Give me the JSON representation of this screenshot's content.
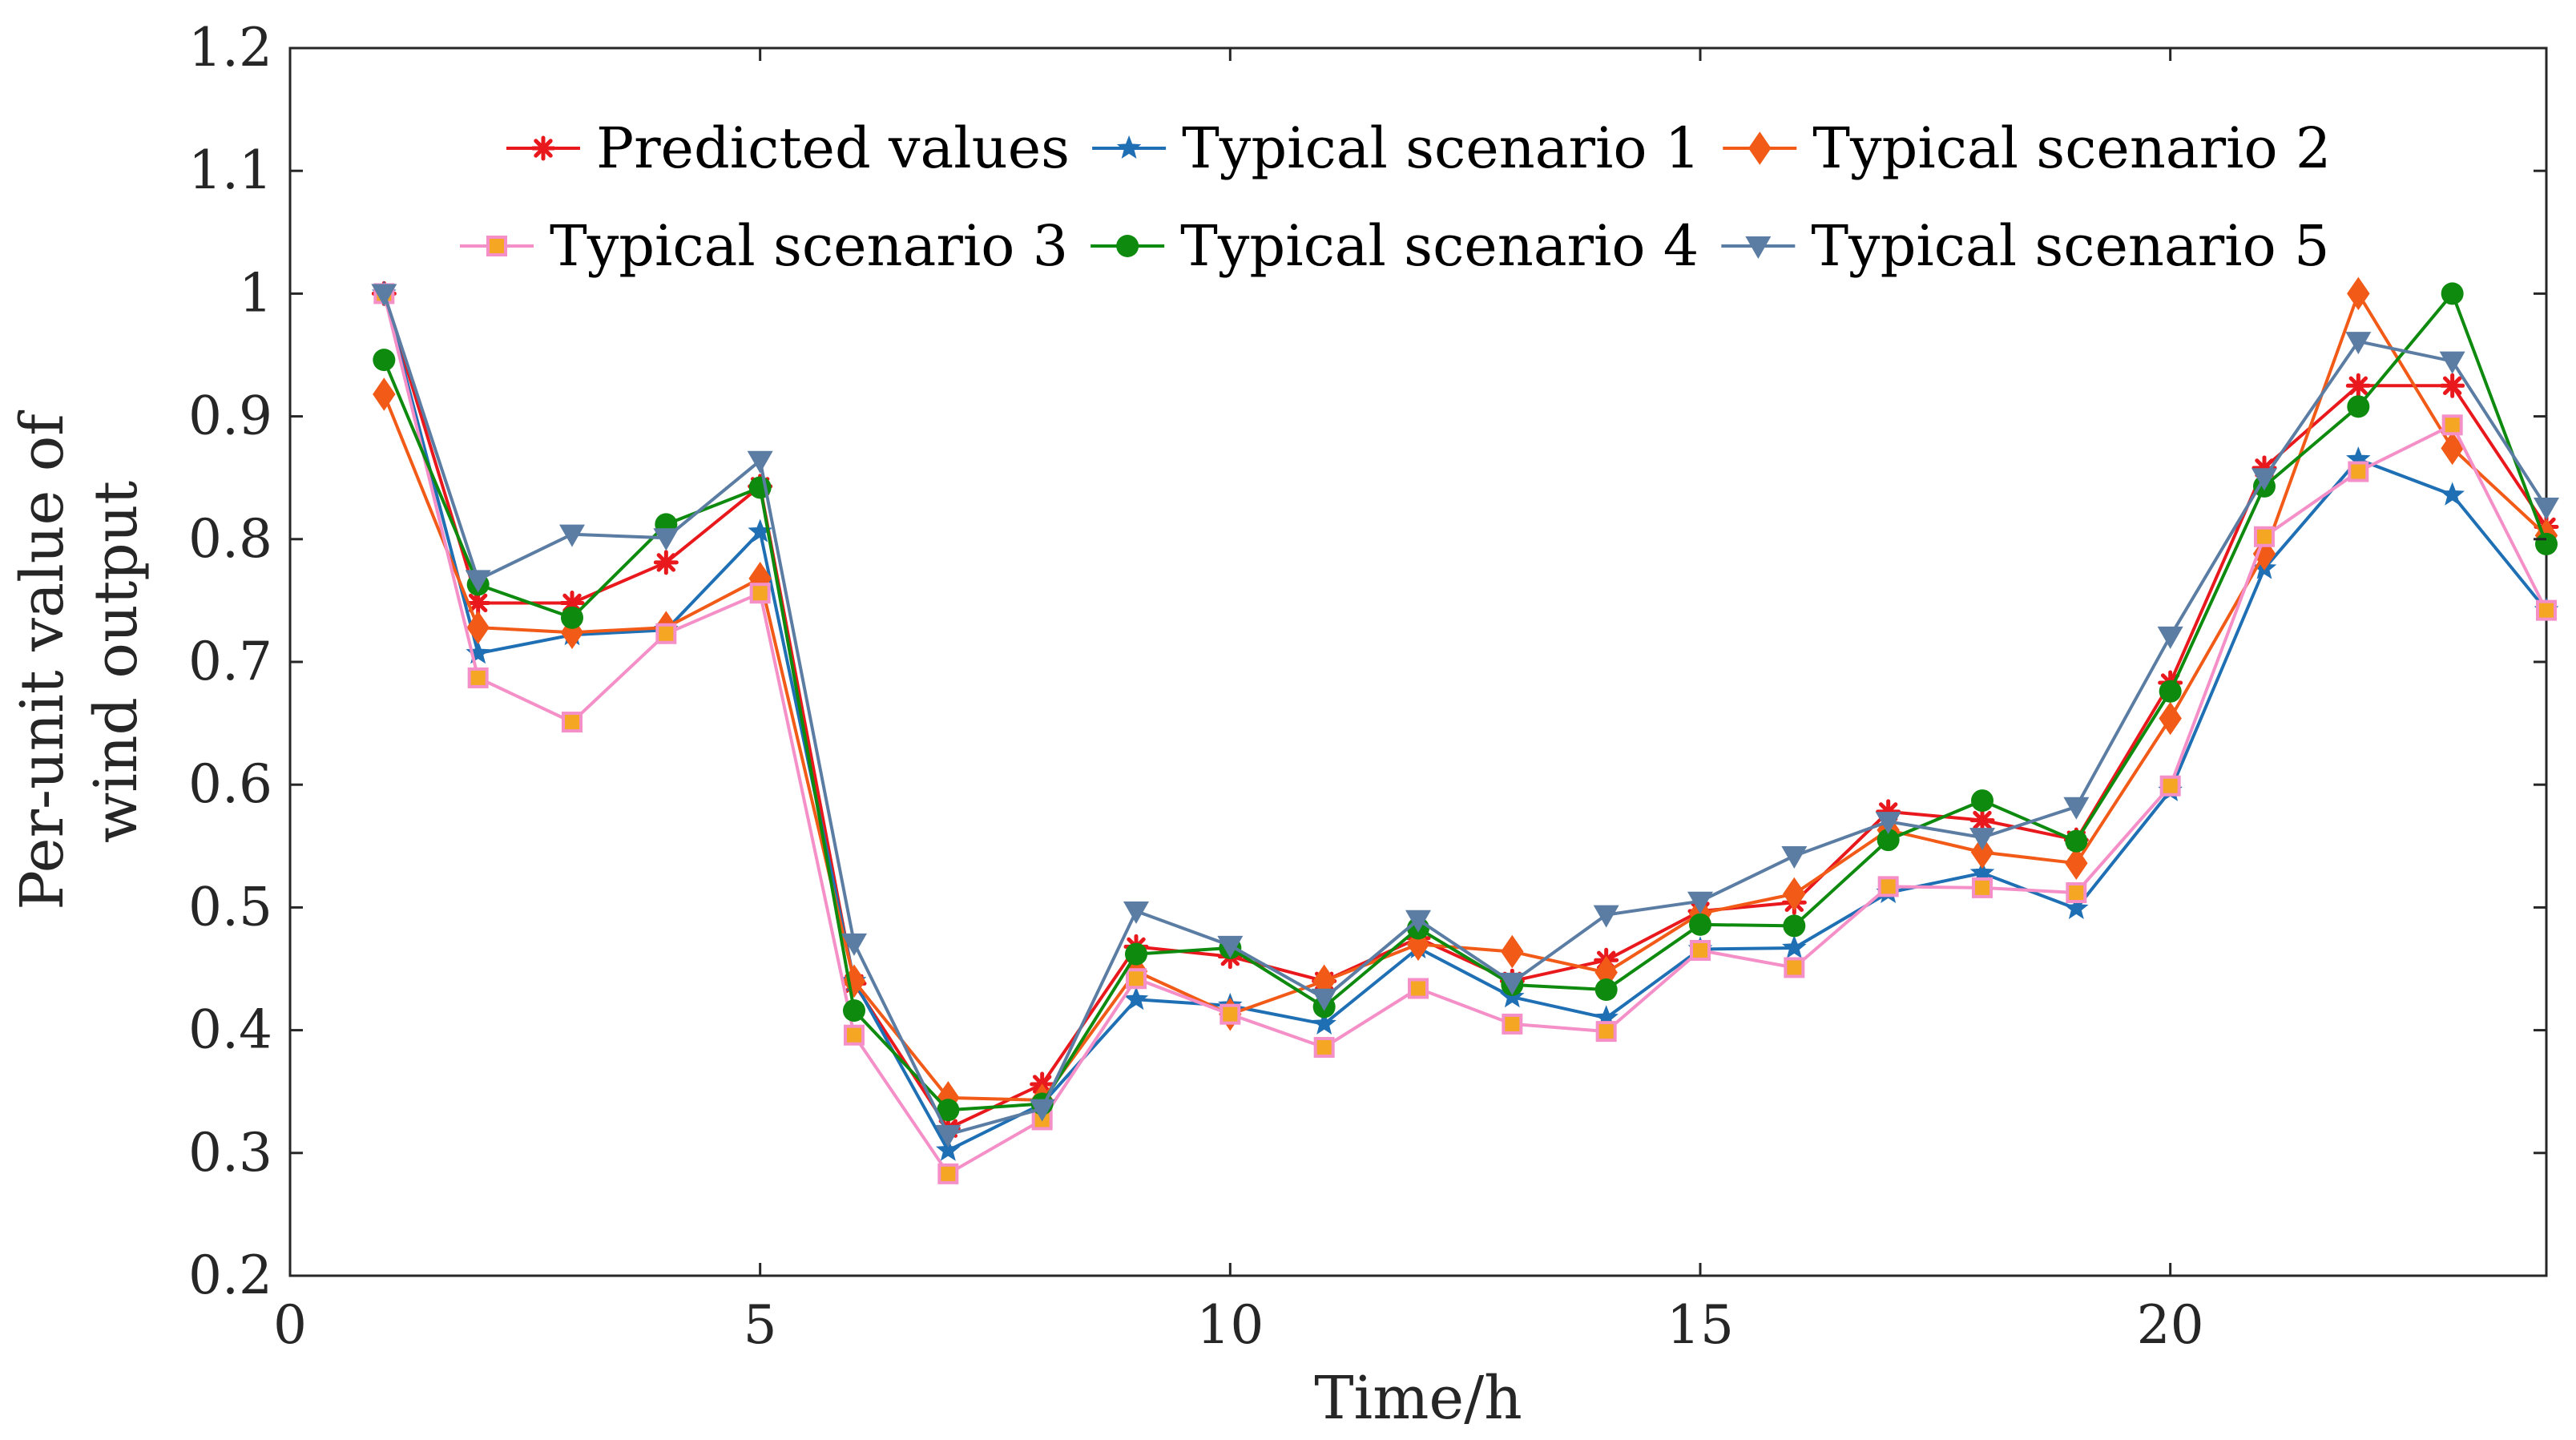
{
  "chart_data": {
    "type": "line",
    "title": "",
    "xlabel": "Time/h",
    "ylabel_lines": [
      "Per-unit value of",
      "wind output"
    ],
    "xlim": [
      0,
      24
    ],
    "ylim": [
      0.2,
      1.2
    ],
    "xticks": [
      "0",
      "5",
      "10",
      "15",
      "20"
    ],
    "yticks": [
      "0.2",
      "0.3",
      "0.4",
      "0.5",
      "0.6",
      "0.7",
      "0.8",
      "0.9",
      "1",
      "1.1",
      "1.2"
    ],
    "grid": false,
    "legend_position": "top",
    "x": [
      1,
      2,
      3,
      4,
      5,
      6,
      7,
      8,
      9,
      10,
      11,
      12,
      13,
      14,
      15,
      16,
      17,
      18,
      19,
      20,
      21,
      22,
      23,
      24
    ],
    "series": [
      {
        "name": "Predicted values",
        "color": "#e8181c",
        "marker": "asterisk",
        "values": [
          1.0,
          0.748,
          0.748,
          0.781,
          0.843,
          0.438,
          0.32,
          0.356,
          0.468,
          0.46,
          0.44,
          0.475,
          0.44,
          0.457,
          0.497,
          0.504,
          0.578,
          0.571,
          0.555,
          0.683,
          0.858,
          0.925,
          0.925,
          0.81
        ]
      },
      {
        "name": "Typical scenario 1",
        "color": "#1f6fb4",
        "marker": "star",
        "values": [
          1.0,
          0.707,
          0.722,
          0.726,
          0.806,
          0.44,
          0.302,
          0.34,
          0.425,
          0.42,
          0.405,
          0.467,
          0.427,
          0.41,
          0.466,
          0.467,
          0.512,
          0.528,
          0.499,
          0.595,
          0.776,
          0.865,
          0.836,
          0.742
        ]
      },
      {
        "name": "Typical scenario 2",
        "color": "#f25a18",
        "marker": "diamond",
        "values": [
          0.918,
          0.728,
          0.724,
          0.728,
          0.768,
          0.44,
          0.345,
          0.343,
          0.448,
          0.413,
          0.44,
          0.47,
          0.464,
          0.447,
          0.495,
          0.511,
          0.563,
          0.545,
          0.536,
          0.654,
          0.788,
          1.0,
          0.874,
          0.803
        ]
      },
      {
        "name": "Typical scenario 3",
        "color": "#f48fc8",
        "marker": "square",
        "values": [
          1.0,
          0.687,
          0.651,
          0.723,
          0.756,
          0.396,
          0.283,
          0.327,
          0.442,
          0.413,
          0.386,
          0.434,
          0.405,
          0.399,
          0.465,
          0.451,
          0.517,
          0.516,
          0.512,
          0.599,
          0.802,
          0.855,
          0.893,
          0.742
        ]
      },
      {
        "name": "Typical scenario 4",
        "color": "#0e8a0e",
        "marker": "circle",
        "values": [
          0.946,
          0.763,
          0.736,
          0.812,
          0.842,
          0.416,
          0.335,
          0.34,
          0.462,
          0.467,
          0.419,
          0.483,
          0.437,
          0.433,
          0.486,
          0.485,
          0.555,
          0.587,
          0.554,
          0.676,
          0.843,
          0.908,
          1.0,
          0.796
        ]
      },
      {
        "name": "Typical scenario 5",
        "color": "#5b7da3",
        "marker": "triangle-down",
        "values": [
          1.0,
          0.767,
          0.804,
          0.801,
          0.864,
          0.471,
          0.315,
          0.336,
          0.497,
          0.469,
          0.426,
          0.49,
          0.439,
          0.494,
          0.505,
          0.542,
          0.57,
          0.557,
          0.582,
          0.721,
          0.85,
          0.961,
          0.945,
          0.826
        ]
      }
    ]
  }
}
